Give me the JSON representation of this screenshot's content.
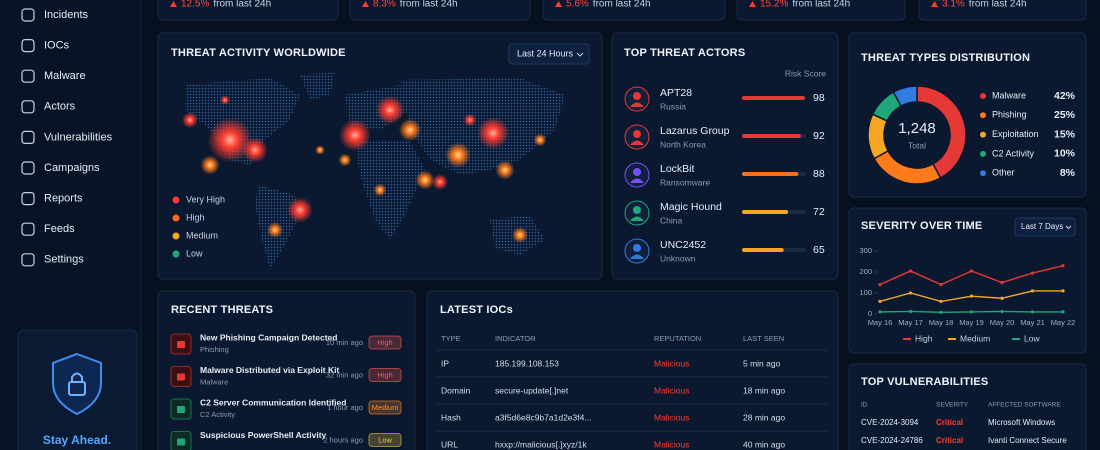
{
  "sidebar": {
    "items": [
      "Incidents",
      "IOCs",
      "Malware",
      "Actors",
      "Vulnerabilities",
      "Campaigns",
      "Reports",
      "Feeds",
      "Settings"
    ],
    "promo": "Stay Ahead."
  },
  "kpis": [
    {
      "change": "12.5%",
      "note": "from last 24h"
    },
    {
      "change": "8.3%",
      "note": "from last 24h"
    },
    {
      "change": "5.6%",
      "note": "from last 24h"
    },
    {
      "change": "15.2%",
      "note": "from last 24h"
    },
    {
      "change": "3.1%",
      "note": "from last 24h"
    }
  ],
  "map": {
    "title": "THREAT ACTIVITY WORLDWIDE",
    "range": "Last 24 Hours",
    "legend": [
      "Very High",
      "High",
      "Medium",
      "Low"
    ],
    "legend_colors": [
      "#ff3b30",
      "#ff6a1a",
      "#f5a623",
      "#1fa67a"
    ]
  },
  "chart_data": [
    {
      "type": "hbar",
      "title": "TOP THREAT ACTORS",
      "value_title": "Risk Score",
      "categories": [
        "APT28",
        "Lazarus Group",
        "LockBit",
        "Magic Hound",
        "UNC2452"
      ],
      "groups": [
        "Russia",
        "North Korea",
        "Ransomware",
        "China",
        "Unknown"
      ],
      "values": [
        98,
        92,
        88,
        72,
        65
      ],
      "colors": [
        "#e53935",
        "#e53935",
        "#ff6d1f",
        "#f5a623",
        "#f5a623"
      ],
      "xlim": [
        0,
        100
      ]
    },
    {
      "type": "pie",
      "title": "THREAT TYPES DISTRIBUTION",
      "center_label": "1,248",
      "center_caption": "Total",
      "categories": [
        "Malware",
        "Phishing",
        "Exploitation",
        "C2 Activity",
        "Other"
      ],
      "values": [
        42,
        25,
        15,
        10,
        8
      ],
      "value_labels": [
        "42%",
        "25%",
        "15%",
        "10%",
        "8%"
      ],
      "colors": [
        "#e53935",
        "#ff7a1a",
        "#f5a623",
        "#1fa67a",
        "#2f7de1"
      ]
    },
    {
      "type": "line",
      "title": "SEVERITY OVER TIME",
      "range": "Last 7 Days",
      "categories": [
        "May 16",
        "May 17",
        "May 18",
        "May 19",
        "May 20",
        "May 21",
        "May 22"
      ],
      "series": [
        {
          "name": "High",
          "color": "#e53935",
          "values": [
            140,
            205,
            140,
            205,
            150,
            195,
            230
          ]
        },
        {
          "name": "Medium",
          "color": "#f5a623",
          "values": [
            60,
            100,
            60,
            85,
            75,
            110,
            110
          ]
        },
        {
          "name": "Low",
          "color": "#1fa67a",
          "values": [
            10,
            12,
            8,
            10,
            12,
            10,
            10
          ]
        }
      ],
      "ylim": [
        0,
        300
      ],
      "yticks": [
        0,
        100,
        200,
        300
      ],
      "grid": false
    }
  ],
  "recent_threats": {
    "title": "RECENT THREATS",
    "items": [
      {
        "title": "New Phishing Campaign Detected",
        "category": "Phishing",
        "time": "10 min ago",
        "severity": "High",
        "color": "#ff5a4f"
      },
      {
        "title": "Malware Distributed via Exploit Kit",
        "category": "Malware",
        "time": "32 min ago",
        "severity": "High",
        "color": "#ff5a4f"
      },
      {
        "title": "C2 Server Communication Identified",
        "category": "C2 Activity",
        "time": "1 hour ago",
        "severity": "Medium",
        "color": "#ff8a2a"
      },
      {
        "title": "Suspicious PowerShell Activity",
        "time": "2 hours ago",
        "severity": "Low",
        "color": "#f5c542"
      }
    ]
  },
  "iocs": {
    "title": "LATEST IOCs",
    "columns": [
      "TYPE",
      "INDICATOR",
      "REPUTATION",
      "LAST SEEN"
    ],
    "rows": [
      [
        "IP",
        "185.199.108.153",
        "Malicious",
        "5 min ago"
      ],
      [
        "Domain",
        "secure-update[.]net",
        "Malicious",
        "18 min ago"
      ],
      [
        "Hash",
        "a3f5d6e8c9b7a1d2e3f4...",
        "Malicious",
        "28 min ago"
      ],
      [
        "URL",
        "hxxp://malicious[.]xyz/1k",
        "Malicious",
        "40 min ago"
      ]
    ]
  },
  "vulnerabilities": {
    "title": "TOP VULNERABILITIES",
    "columns": [
      "ID",
      "SEVERITY",
      "AFFECTED SOFTWARE"
    ],
    "rows": [
      [
        "CVE-2024-3094",
        "Critical",
        "Microsoft Windows"
      ],
      [
        "CVE-2024-24786",
        "Critical",
        "Ivanti Connect Secure"
      ]
    ]
  }
}
